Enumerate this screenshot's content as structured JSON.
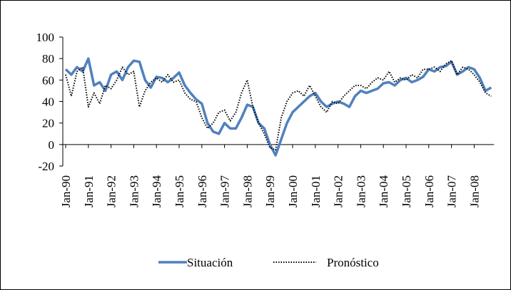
{
  "chart_data": {
    "type": "line",
    "categories": [
      "Jan-90",
      null,
      null,
      null,
      "Jan-91",
      null,
      null,
      null,
      "Jan-92",
      null,
      null,
      null,
      "Jan-93",
      null,
      null,
      null,
      "Jan-94",
      null,
      null,
      null,
      "Jan-95",
      null,
      null,
      null,
      "Jan-96",
      null,
      null,
      null,
      "Jan-97",
      null,
      null,
      null,
      "Jan-98",
      null,
      null,
      null,
      "Jan-99",
      null,
      null,
      null,
      "Jan-00",
      null,
      null,
      null,
      "Jan-01",
      null,
      null,
      null,
      "Jan-02",
      null,
      null,
      null,
      "Jan-03",
      null,
      null,
      null,
      "Jan-04",
      null,
      null,
      null,
      "Jan-05",
      null,
      null,
      null,
      "Jan-06",
      null,
      null,
      null,
      "Jan-07",
      null,
      null,
      null,
      "Jan-08",
      null,
      null,
      null
    ],
    "series": [
      {
        "name": "Situación",
        "color": "#4f81bd",
        "style": "solid",
        "values": [
          70,
          65,
          72,
          68,
          80,
          55,
          58,
          50,
          65,
          68,
          60,
          72,
          78,
          77,
          60,
          53,
          63,
          62,
          58,
          62,
          67,
          55,
          48,
          42,
          38,
          20,
          12,
          10,
          20,
          15,
          15,
          25,
          37,
          35,
          20,
          15,
          0,
          -10,
          5,
          20,
          30,
          35,
          40,
          45,
          48,
          40,
          35,
          38,
          40,
          38,
          35,
          45,
          50,
          48,
          50,
          52,
          57,
          58,
          55,
          60,
          62,
          58,
          60,
          63,
          70,
          68,
          72,
          73,
          77,
          65,
          68,
          72,
          70,
          62,
          50,
          53
        ]
      },
      {
        "name": "Pronóstico",
        "color": "#000000",
        "style": "dotted",
        "values": [
          65,
          45,
          68,
          72,
          35,
          48,
          38,
          55,
          52,
          60,
          72,
          65,
          68,
          35,
          50,
          58,
          62,
          58,
          65,
          58,
          60,
          48,
          42,
          40,
          25,
          15,
          20,
          30,
          32,
          22,
          30,
          48,
          60,
          35,
          20,
          10,
          -3,
          -5,
          25,
          40,
          48,
          50,
          45,
          55,
          45,
          35,
          30,
          40,
          38,
          45,
          50,
          55,
          55,
          52,
          58,
          62,
          60,
          68,
          58,
          62,
          60,
          65,
          62,
          70,
          70,
          72,
          68,
          75,
          78,
          65,
          72,
          70,
          65,
          58,
          48,
          45
        ]
      }
    ],
    "ylim": [
      -20,
      100
    ],
    "yticks": [
      -20,
      0,
      20,
      40,
      60,
      80,
      100
    ]
  }
}
